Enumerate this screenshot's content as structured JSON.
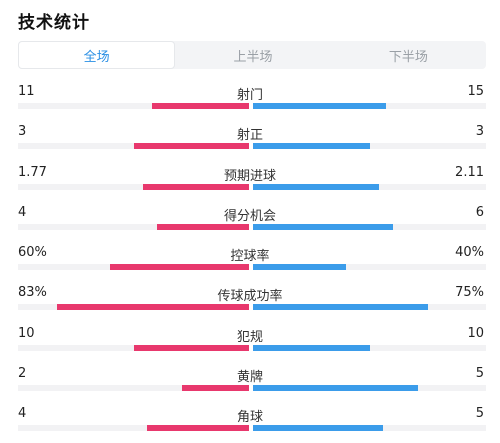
{
  "title": "技术统计",
  "tabs": [
    {
      "label": "全场",
      "active": true
    },
    {
      "label": "上半场",
      "active": false
    },
    {
      "label": "下半场",
      "active": false
    }
  ],
  "colors": {
    "home": "#e8386d",
    "away": "#3b9cea",
    "accent": "#2a8fe4"
  },
  "stats": [
    {
      "label": "射门",
      "home": "11",
      "away": "15",
      "home_level": 0.42,
      "away_level": 0.57
    },
    {
      "label": "射正",
      "home": "3",
      "away": "3",
      "home_level": 0.5,
      "away_level": 0.5
    },
    {
      "label": "预期进球",
      "home": "1.77",
      "away": "2.11",
      "home_level": 0.46,
      "away_level": 0.54
    },
    {
      "label": "得分机会",
      "home": "4",
      "away": "6",
      "home_level": 0.4,
      "away_level": 0.6
    },
    {
      "label": "控球率",
      "home": "60%",
      "away": "40%",
      "home_level": 0.6,
      "away_level": 0.4
    },
    {
      "label": "传球成功率",
      "home": "83%",
      "away": "75%",
      "home_level": 0.83,
      "away_level": 0.75
    },
    {
      "label": "犯规",
      "home": "10",
      "away": "10",
      "home_level": 0.5,
      "away_level": 0.5
    },
    {
      "label": "黄牌",
      "home": "2",
      "away": "5",
      "home_level": 0.29,
      "away_level": 0.71
    },
    {
      "label": "角球",
      "home": "4",
      "away": "5",
      "home_level": 0.44,
      "away_level": 0.56
    }
  ]
}
